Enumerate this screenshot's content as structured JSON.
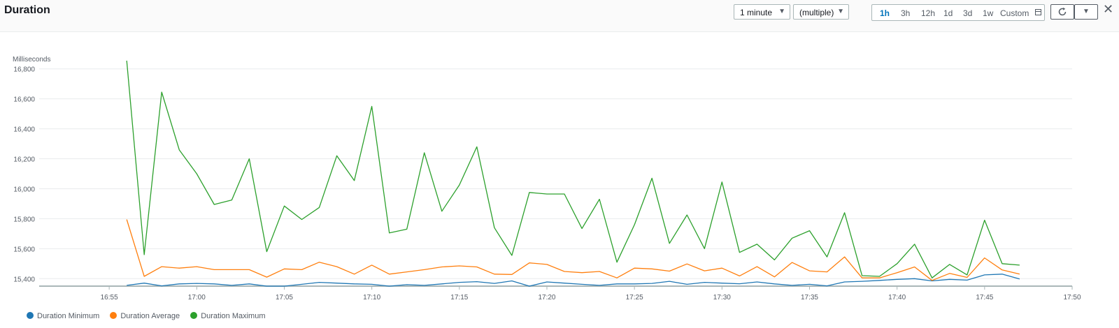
{
  "header": {
    "title": "Duration",
    "period": "1 minute",
    "statistic": "(multiple)",
    "ranges": [
      "1h",
      "3h",
      "12h",
      "1d",
      "3d",
      "1w",
      "Custom"
    ],
    "active_range": "1h"
  },
  "colors": {
    "minimum": "#1f77b4",
    "average": "#ff7f0e",
    "maximum": "#2ca02c"
  },
  "icons": {
    "calendar": "calendar-icon",
    "refresh": "refresh-icon",
    "dropdown": "caret-down-icon",
    "close": "close-icon"
  },
  "chart_data": {
    "type": "line",
    "title": "Duration",
    "ylabel": "Milliseconds",
    "xlabel": "",
    "x_unit": "time HH:MM",
    "xlim": [
      "16:51",
      "17:50"
    ],
    "ylim": [
      15350,
      16850
    ],
    "yticks": [
      15400,
      15600,
      15800,
      16000,
      16200,
      16400,
      16600,
      16800
    ],
    "ytick_labels": [
      "15,400",
      "15,600",
      "15,800",
      "16,000",
      "16,200",
      "16,400",
      "16,600",
      "16,800"
    ],
    "xtick_labels": [
      "16:55",
      "17:00",
      "17:05",
      "17:10",
      "17:15",
      "17:20",
      "17:25",
      "17:30",
      "17:35",
      "17:40",
      "17:45",
      "17:50"
    ],
    "grid": true,
    "legend_position": "bottom-left",
    "x": [
      "16:56",
      "16:57",
      "16:58",
      "16:59",
      "17:00",
      "17:01",
      "17:02",
      "17:03",
      "17:04",
      "17:05",
      "17:06",
      "17:07",
      "17:08",
      "17:09",
      "17:10",
      "17:11",
      "17:12",
      "17:13",
      "17:14",
      "17:15",
      "17:16",
      "17:17",
      "17:18",
      "17:19",
      "17:20",
      "17:21",
      "17:22",
      "17:23",
      "17:24",
      "17:25",
      "17:26",
      "17:27",
      "17:28",
      "17:29",
      "17:30",
      "17:31",
      "17:32",
      "17:33",
      "17:34",
      "17:35",
      "17:36",
      "17:37",
      "17:38",
      "17:39",
      "17:40",
      "17:41",
      "17:42",
      "17:43",
      "17:44",
      "17:45",
      "17:46",
      "17:47"
    ],
    "series": [
      {
        "name": "Duration Minimum",
        "values": [
          15355,
          15370,
          15352,
          15365,
          15368,
          15365,
          15355,
          15365,
          15350,
          15350,
          15362,
          15375,
          15370,
          15365,
          15362,
          15350,
          15360,
          15355,
          15365,
          15375,
          15380,
          15368,
          15385,
          15350,
          15378,
          15370,
          15362,
          15355,
          15365,
          15365,
          15368,
          15382,
          15362,
          15375,
          15370,
          15366,
          15378,
          15365,
          15355,
          15362,
          15352,
          15378,
          15382,
          15388,
          15395,
          15400,
          15385,
          15395,
          15390,
          15425,
          15430,
          15398
        ]
      },
      {
        "name": "Duration Average",
        "values": [
          15795,
          15415,
          15480,
          15470,
          15480,
          15460,
          15460,
          15460,
          15410,
          15465,
          15460,
          15510,
          15480,
          15430,
          15490,
          15430,
          15445,
          15460,
          15478,
          15485,
          15478,
          15430,
          15428,
          15505,
          15495,
          15448,
          15440,
          15448,
          15405,
          15470,
          15465,
          15450,
          15498,
          15452,
          15470,
          15418,
          15480,
          15412,
          15508,
          15452,
          15445,
          15545,
          15405,
          15405,
          15440,
          15478,
          15388,
          15435,
          15408,
          15538,
          15458,
          15430
        ]
      },
      {
        "name": "Duration Maximum",
        "values": [
          16855,
          15560,
          16645,
          16260,
          16100,
          15895,
          15925,
          16200,
          15580,
          15885,
          15795,
          15875,
          16220,
          16055,
          16550,
          15705,
          15730,
          16240,
          15850,
          16025,
          16280,
          15740,
          15555,
          15975,
          15965,
          15965,
          15735,
          15930,
          15510,
          15760,
          16070,
          15635,
          15825,
          15600,
          16045,
          15575,
          15630,
          15525,
          15670,
          15720,
          15545,
          15840,
          15420,
          15415,
          15500,
          15630,
          15405,
          15495,
          15425,
          15790,
          15500,
          15490
        ]
      }
    ]
  }
}
